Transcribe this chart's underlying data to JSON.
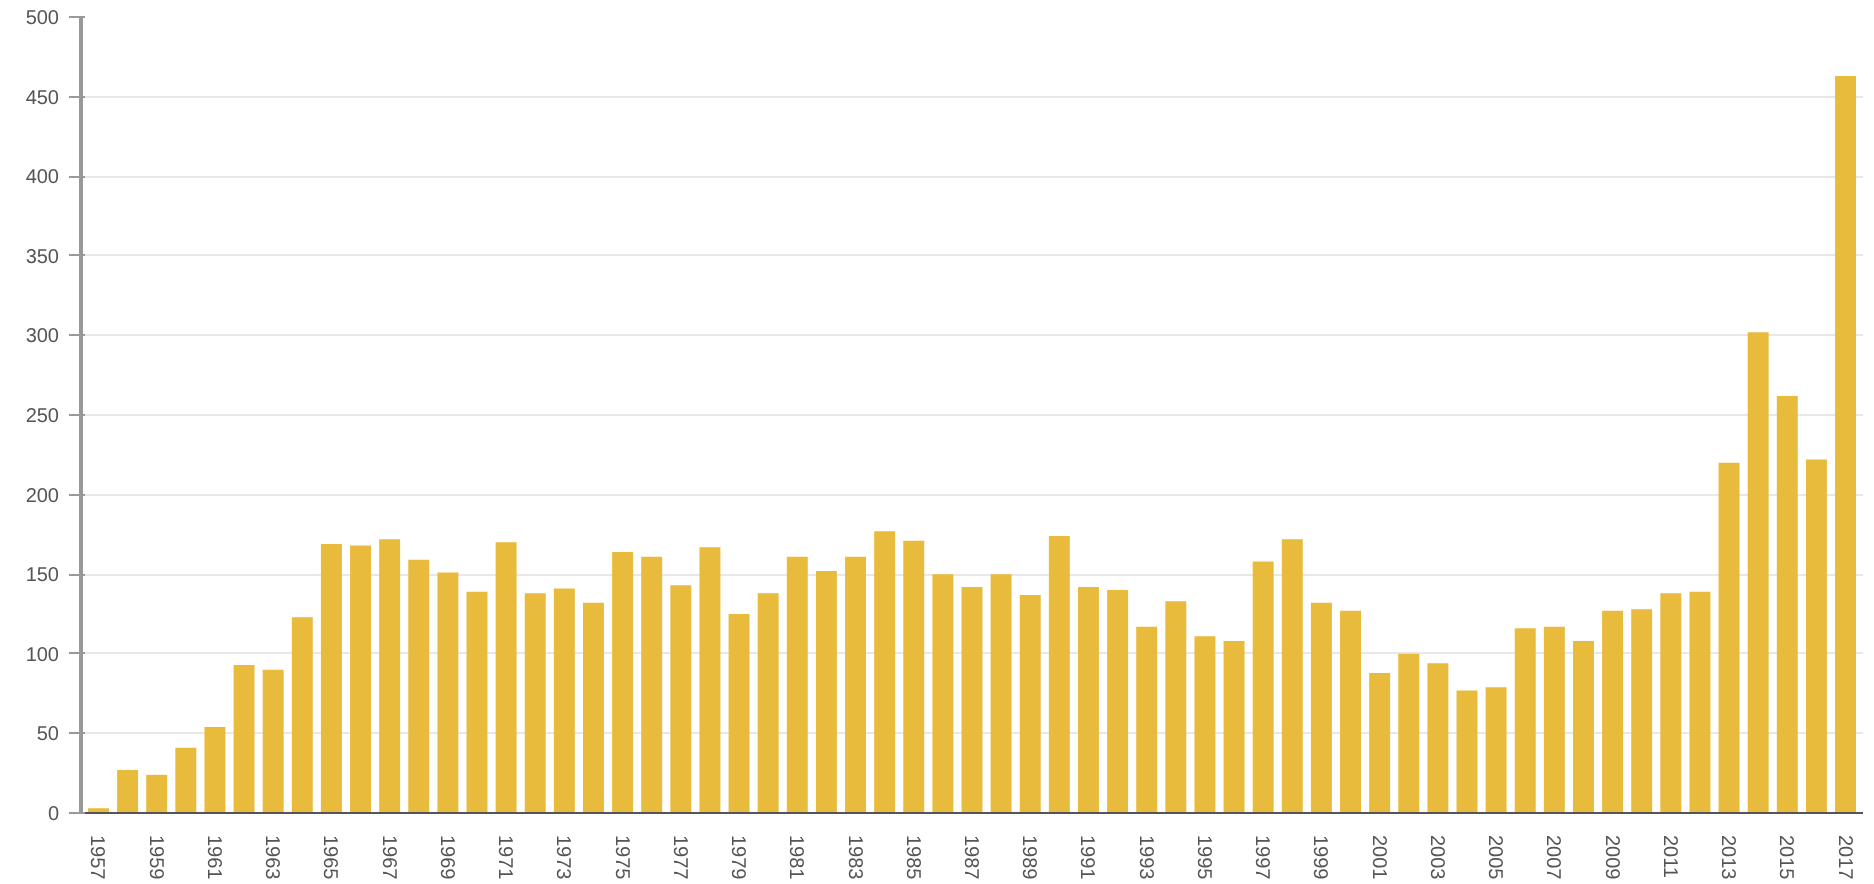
{
  "chart_data": {
    "type": "bar",
    "categories": [
      "1957",
      null,
      "1959",
      null,
      "1961",
      null,
      "1963",
      null,
      "1965",
      null,
      "1967",
      null,
      "1969",
      null,
      "1971",
      null,
      "1973",
      null,
      "1975",
      null,
      "1977",
      null,
      "1979",
      null,
      "1981",
      null,
      "1983",
      null,
      "1985",
      null,
      "1987",
      null,
      "1989",
      null,
      "1991",
      null,
      "1993",
      null,
      "1995",
      null,
      "1997",
      null,
      "1999",
      null,
      "2001",
      null,
      "2003",
      null,
      "2005",
      null,
      "2007",
      null,
      "2009",
      null,
      "2011",
      null,
      "2013",
      null,
      "2015",
      null,
      "2017"
    ],
    "values": [
      3,
      27,
      24,
      41,
      54,
      93,
      90,
      123,
      169,
      168,
      172,
      159,
      151,
      139,
      170,
      138,
      141,
      132,
      164,
      161,
      143,
      167,
      125,
      138,
      161,
      152,
      161,
      177,
      171,
      150,
      142,
      150,
      137,
      174,
      142,
      140,
      117,
      133,
      111,
      108,
      158,
      172,
      132,
      127,
      88,
      100,
      94,
      77,
      79,
      116,
      117,
      108,
      127,
      128,
      138,
      139,
      220,
      302,
      262,
      222,
      463
    ],
    "color": "#e9bb3c",
    "ylim": [
      0,
      500
    ],
    "yticks": [
      0,
      50,
      100,
      150,
      200,
      250,
      300,
      350,
      400,
      450,
      500
    ],
    "grid": "y"
  }
}
